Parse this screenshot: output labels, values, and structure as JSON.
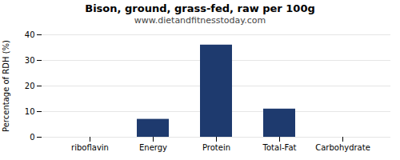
{
  "chart_data": {
    "type": "bar",
    "title": "Bison, ground, grass-fed, raw per 100g",
    "subtitle": "www.dietandfitnesstoday.com",
    "categories": [
      "riboflavin",
      "Energy",
      "Protein",
      "Total-Fat",
      "Carbohydrate"
    ],
    "values": [
      0,
      7,
      36,
      11,
      0
    ],
    "color": "#1e3a6e",
    "ylim": [
      0,
      40
    ],
    "yticks": [
      0,
      10,
      20,
      30,
      40
    ],
    "ylabel": "Percentage of RDH (%)",
    "grid": true
  }
}
